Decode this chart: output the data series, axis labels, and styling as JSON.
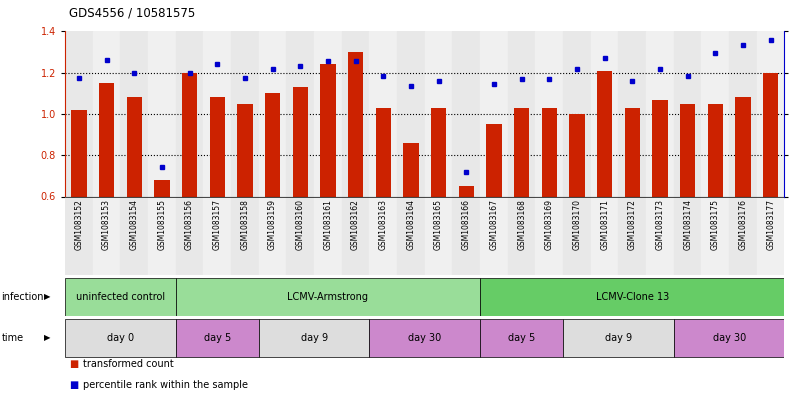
{
  "title": "GDS4556 / 10581575",
  "samples": [
    "GSM1083152",
    "GSM1083153",
    "GSM1083154",
    "GSM1083155",
    "GSM1083156",
    "GSM1083157",
    "GSM1083158",
    "GSM1083159",
    "GSM1083160",
    "GSM1083161",
    "GSM1083162",
    "GSM1083163",
    "GSM1083164",
    "GSM1083165",
    "GSM1083166",
    "GSM1083167",
    "GSM1083168",
    "GSM1083169",
    "GSM1083170",
    "GSM1083171",
    "GSM1083172",
    "GSM1083173",
    "GSM1083174",
    "GSM1083175",
    "GSM1083176",
    "GSM1083177"
  ],
  "bar_values": [
    1.02,
    1.15,
    1.08,
    0.68,
    1.2,
    1.08,
    1.05,
    1.1,
    1.13,
    1.24,
    1.3,
    1.03,
    0.86,
    1.03,
    0.65,
    0.95,
    1.03,
    1.03,
    1.0,
    1.21,
    1.03,
    1.07,
    1.05,
    1.05,
    1.08,
    1.2
  ],
  "dot_values": [
    72,
    83,
    75,
    18,
    75,
    80,
    72,
    77,
    79,
    82,
    82,
    73,
    67,
    70,
    15,
    68,
    71,
    71,
    77,
    84,
    70,
    77,
    73,
    87,
    92,
    95
  ],
  "ylim_left": [
    0.6,
    1.4
  ],
  "ylim_right": [
    0,
    100
  ],
  "bar_color": "#cc2200",
  "dot_color": "#0000cc",
  "bg_color": "#ffffff",
  "infection_defs": [
    {
      "label": "uninfected control",
      "start": 0,
      "end": 3,
      "color": "#99dd99"
    },
    {
      "label": "LCMV-Armstrong",
      "start": 4,
      "end": 14,
      "color": "#99dd99"
    },
    {
      "label": "LCMV-Clone 13",
      "start": 15,
      "end": 25,
      "color": "#66cc66"
    }
  ],
  "time_defs": [
    {
      "label": "day 0",
      "start": 0,
      "end": 3,
      "color": "#dddddd"
    },
    {
      "label": "day 5",
      "start": 4,
      "end": 6,
      "color": "#cc88cc"
    },
    {
      "label": "day 9",
      "start": 7,
      "end": 10,
      "color": "#dddddd"
    },
    {
      "label": "day 30",
      "start": 11,
      "end": 14,
      "color": "#cc88cc"
    },
    {
      "label": "day 5",
      "start": 15,
      "end": 17,
      "color": "#cc88cc"
    },
    {
      "label": "day 9",
      "start": 18,
      "end": 21,
      "color": "#dddddd"
    },
    {
      "label": "day 30",
      "start": 22,
      "end": 25,
      "color": "#cc88cc"
    }
  ]
}
